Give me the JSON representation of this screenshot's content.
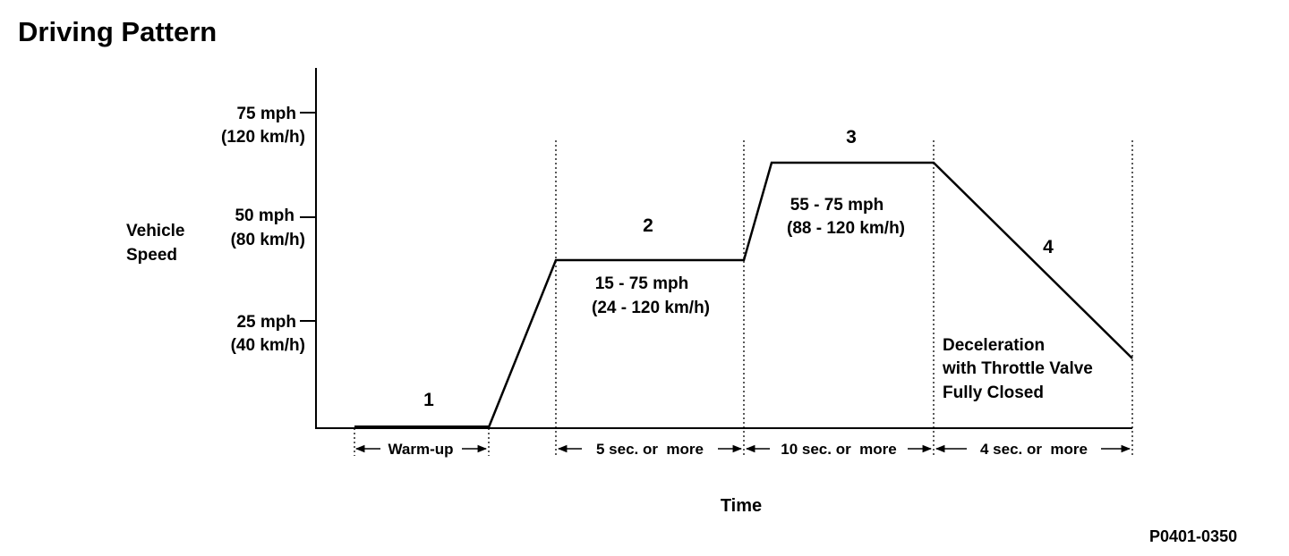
{
  "title": "Driving Pattern",
  "figure_code": "P0401-0350",
  "y_axis": {
    "label_line1": "Vehicle",
    "label_line2": "Speed",
    "ticks": [
      {
        "mph": "75 mph",
        "kmh": "(120 km/h)"
      },
      {
        "mph": "50 mph",
        "kmh": "(80 km/h)"
      },
      {
        "mph": "25 mph",
        "kmh": "(40 km/h)"
      }
    ]
  },
  "x_axis": {
    "label": "Time"
  },
  "phases": [
    {
      "number": "1",
      "duration": "Warm-up"
    },
    {
      "number": "2",
      "range_mph": "15 - 75 mph",
      "range_kmh": "(24 - 120 km/h)",
      "duration": "5 sec. or  more"
    },
    {
      "number": "3",
      "range_mph": "55 - 75 mph",
      "range_kmh": "(88 - 120 km/h)",
      "duration": "10 sec. or  more"
    },
    {
      "number": "4",
      "note_line1": "Deceleration",
      "note_line2": "with Throttle Valve",
      "note_line3": "Fully Closed",
      "duration": "4 sec. or  more"
    }
  ]
}
